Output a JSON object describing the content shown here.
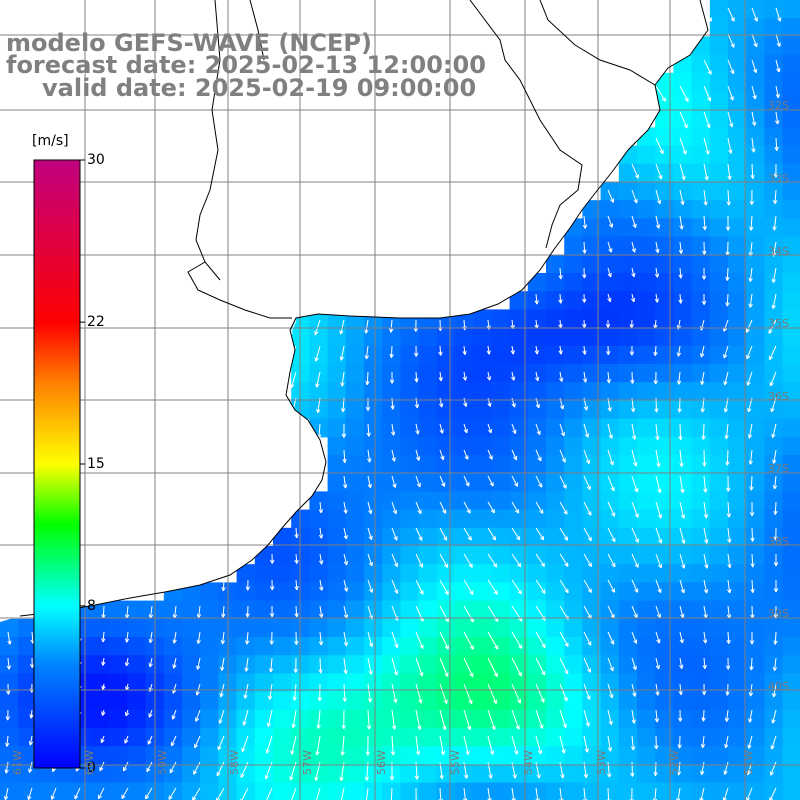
{
  "title": {
    "line1": "modelo GEFS-WAVE (NCEP)",
    "line2": "forecast date: 2025-02-13 12:00:00",
    "line3": "valid date: 2025-02-19 09:00:00"
  },
  "colorbar": {
    "unit": "[m/s]",
    "min": 0,
    "max": 30,
    "ticks": [
      {
        "value": 30,
        "label": "30"
      },
      {
        "value": 22,
        "label": "22"
      },
      {
        "value": 15,
        "label": "15"
      },
      {
        "value": 8,
        "label": "8"
      },
      {
        "value": 0,
        "label": "0"
      }
    ],
    "palette": [
      "#0000ff",
      "#0080ff",
      "#00ffff",
      "#00ff00",
      "#ffff00",
      "#ff8000",
      "#ff0000",
      "#c00080"
    ]
  },
  "map": {
    "variable": "wind speed and direction",
    "land_color": "#ffffff",
    "grid": true,
    "lat_labels": [
      "32S",
      "33S",
      "34S",
      "35S",
      "36S",
      "37S",
      "38S",
      "39S",
      "40S"
    ],
    "lon_labels": [
      "61W",
      "60W",
      "59W",
      "58W",
      "57W",
      "56W",
      "55W",
      "54W",
      "53W",
      "52W",
      "51W"
    ],
    "dominant_flow": "southward / south-westward",
    "speed_range_ms": [
      2,
      12
    ]
  }
}
